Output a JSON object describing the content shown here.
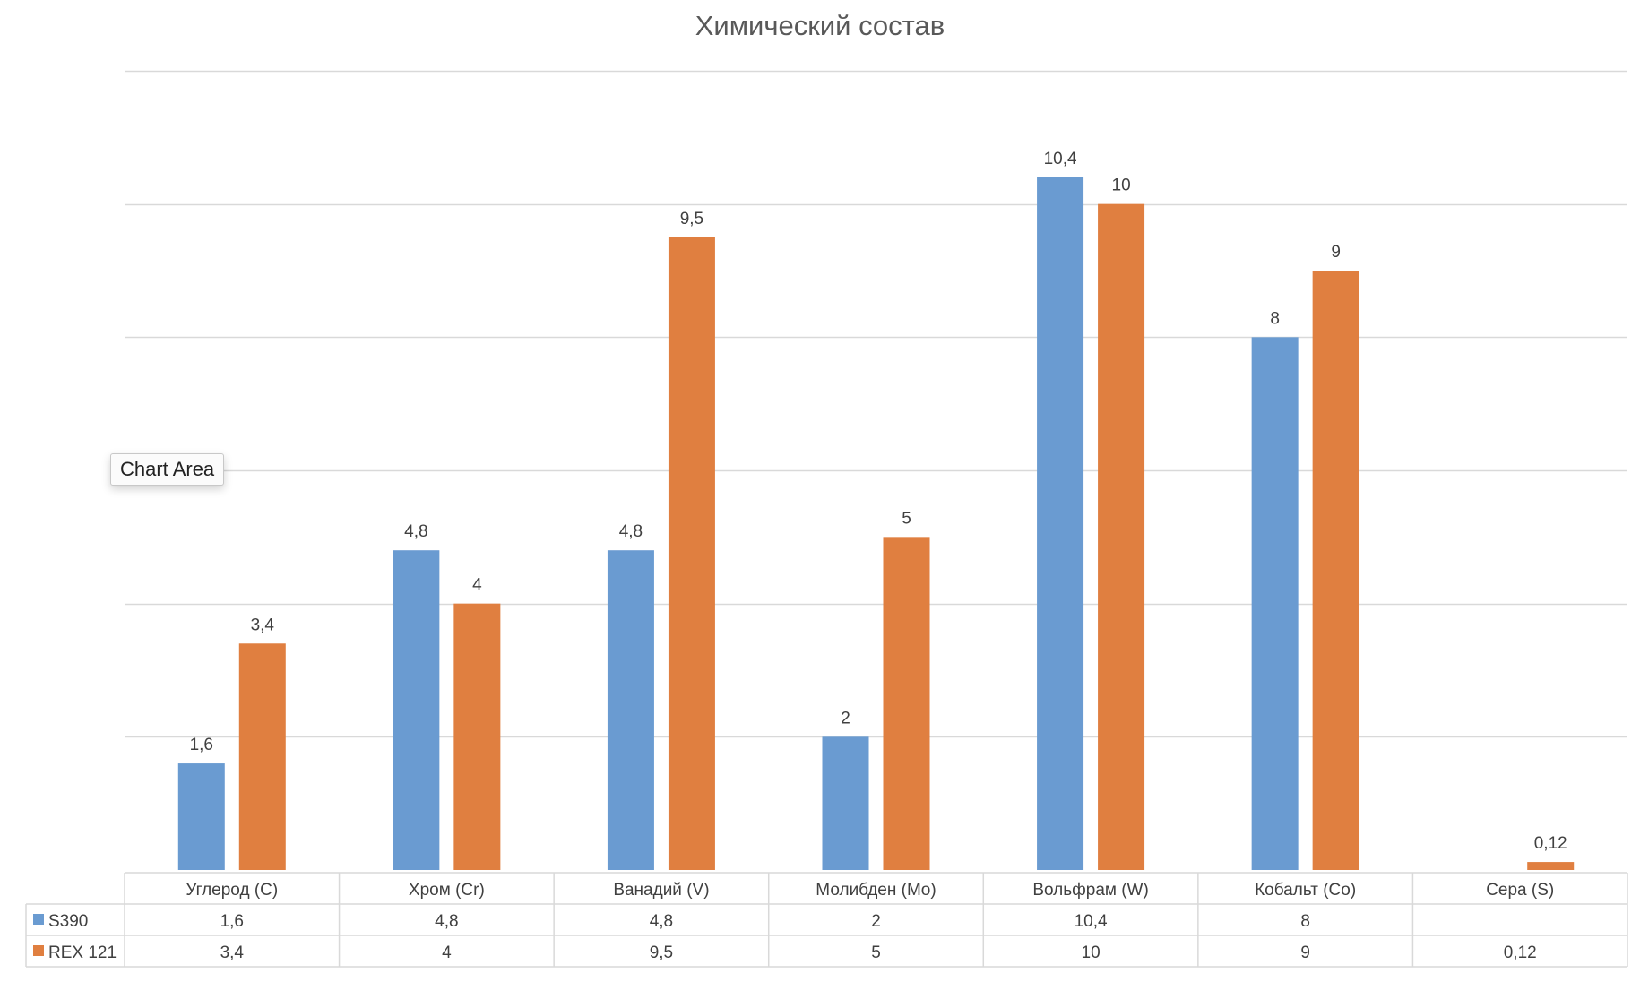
{
  "tooltip": "Chart Area",
  "chart_data": {
    "type": "bar",
    "title": "Химический состав",
    "categories": [
      "Углерод (C)",
      "Хром (Cr)",
      "Ванадий (V)",
      "Молибден (Mo)",
      "Вольфрам (W)",
      "Кобальт (Co)",
      "Сера (S)"
    ],
    "series": [
      {
        "name": "S390",
        "color": "#6a9bd1",
        "values": [
          1.6,
          4.8,
          4.8,
          2,
          10.4,
          8,
          null
        ],
        "labels": [
          "1,6",
          "4,8",
          "4,8",
          "2",
          "10,4",
          "8",
          ""
        ]
      },
      {
        "name": "REX 121",
        "color": "#e07f40",
        "values": [
          3.4,
          4,
          9.5,
          5,
          10,
          9,
          0.12
        ],
        "labels": [
          "3,4",
          "4",
          "9,5",
          "5",
          "10",
          "9",
          "0,12"
        ]
      }
    ],
    "ylim": [
      0,
      12
    ],
    "gridlines": true,
    "data_table": true,
    "xlabel": "",
    "ylabel": ""
  }
}
